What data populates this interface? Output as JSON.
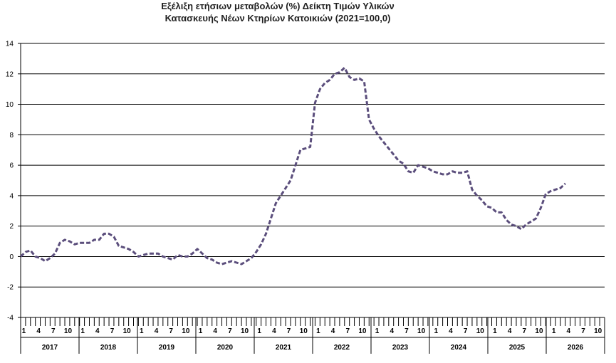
{
  "chart_data": {
    "type": "line",
    "title_line1": "Εξέλιξη ετήσιων μεταβολών (%) Δείκτη Τιμών Υλικών",
    "title_line2": "Κατασκευής Νέων Κτηρίων Κατοικιών (2021=100,0)",
    "xlabel": "",
    "ylabel": "",
    "ylim": [
      -4,
      14
    ],
    "y_ticks": [
      -4,
      -2,
      0,
      2,
      4,
      6,
      8,
      10,
      12,
      14
    ],
    "grid": true,
    "line_color": "#5b4e7c",
    "line_style": "dashed",
    "month_tick_labels": [
      "1",
      "4",
      "7",
      "10"
    ],
    "years": [
      "2017",
      "2018",
      "2019",
      "2020",
      "2021",
      "2022",
      "2023",
      "2024",
      "2025",
      "2026"
    ],
    "series": [
      {
        "values": [
          0.0,
          0.3,
          0.4,
          0.0,
          -0.1,
          -0.3,
          -0.1,
          0.2,
          0.9,
          1.1,
          1.0,
          0.8,
          0.9,
          0.9,
          0.9,
          1.1,
          1.1,
          1.5,
          1.5,
          1.3,
          0.7,
          0.6,
          0.5,
          0.3,
          0.0,
          0.1,
          0.2,
          0.2,
          0.2,
          0.0,
          -0.1,
          -0.2,
          0.1,
          0.0,
          0.0,
          0.2,
          0.5,
          0.2,
          -0.1,
          -0.2,
          -0.4,
          -0.5,
          -0.4,
          -0.3,
          -0.4,
          -0.5,
          -0.3,
          -0.1,
          0.3,
          0.8,
          1.5,
          2.5,
          3.5,
          4.0,
          4.5,
          5.0,
          6.0,
          7.0,
          7.1,
          7.2,
          10.1,
          11.0,
          11.4,
          11.6,
          12.0,
          12.1,
          12.4,
          11.8,
          11.6,
          11.7,
          11.5,
          9.0,
          8.4,
          7.9,
          7.5,
          7.1,
          6.7,
          6.3,
          6.1,
          5.6,
          5.5,
          6.0,
          5.9,
          5.8,
          5.6,
          5.5,
          5.4,
          5.4,
          5.6,
          5.5,
          5.5,
          5.6,
          4.4,
          4.0,
          3.7,
          3.3,
          3.2,
          2.9,
          2.9,
          2.4,
          2.1,
          2.0,
          1.8,
          2.1,
          2.3,
          2.5,
          3.2,
          4.1,
          4.3,
          4.4,
          4.5,
          4.8
        ]
      }
    ]
  }
}
